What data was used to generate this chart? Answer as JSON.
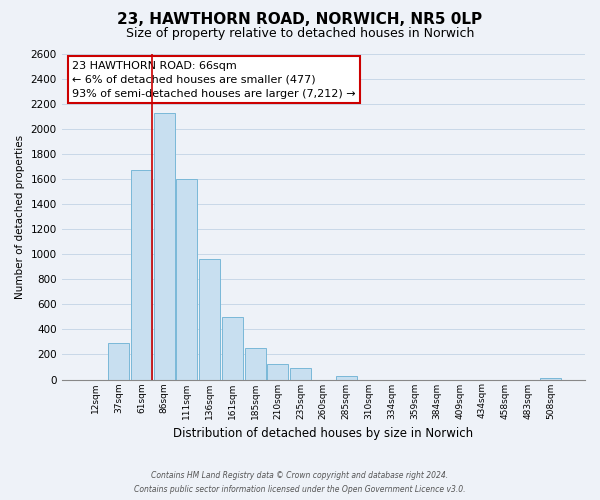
{
  "title": "23, HAWTHORN ROAD, NORWICH, NR5 0LP",
  "subtitle": "Size of property relative to detached houses in Norwich",
  "xlabel": "Distribution of detached houses by size in Norwich",
  "ylabel": "Number of detached properties",
  "bar_labels": [
    "12sqm",
    "37sqm",
    "61sqm",
    "86sqm",
    "111sqm",
    "136sqm",
    "161sqm",
    "185sqm",
    "210sqm",
    "235sqm",
    "260sqm",
    "285sqm",
    "310sqm",
    "334sqm",
    "359sqm",
    "384sqm",
    "409sqm",
    "434sqm",
    "458sqm",
    "483sqm",
    "508sqm"
  ],
  "bar_heights": [
    0,
    290,
    1670,
    2130,
    1600,
    960,
    500,
    250,
    120,
    95,
    0,
    30,
    0,
    0,
    0,
    0,
    0,
    0,
    0,
    0,
    15
  ],
  "bar_color": "#c8dff0",
  "bar_edge_color": "#7ab8d8",
  "vline_x_index": 2,
  "vline_color": "#cc0000",
  "annotation_line1": "23 HAWTHORN ROAD: 66sqm",
  "annotation_line2": "← 6% of detached houses are smaller (477)",
  "annotation_line3": "93% of semi-detached houses are larger (7,212) →",
  "annotation_box_color": "#ffffff",
  "annotation_box_edge": "#cc0000",
  "ylim": [
    0,
    2600
  ],
  "yticks": [
    0,
    200,
    400,
    600,
    800,
    1000,
    1200,
    1400,
    1600,
    1800,
    2000,
    2200,
    2400,
    2600
  ],
  "grid_color": "#c8d8e8",
  "footer_line1": "Contains HM Land Registry data © Crown copyright and database right 2024.",
  "footer_line2": "Contains public sector information licensed under the Open Government Licence v3.0.",
  "title_fontsize": 11,
  "subtitle_fontsize": 9,
  "bg_color": "#eef2f8"
}
